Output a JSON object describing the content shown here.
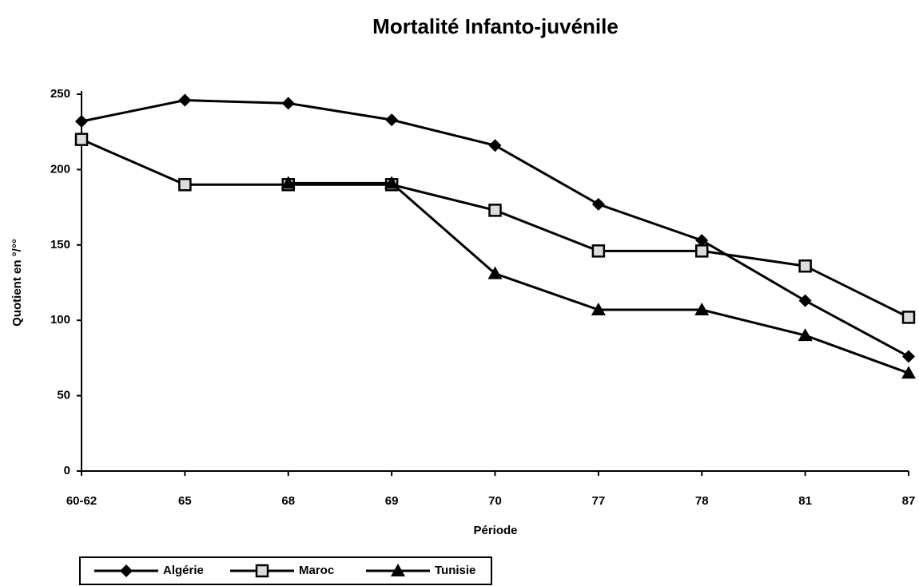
{
  "chart_data": {
    "type": "line",
    "title": "Mortalité Infanto-juvénile",
    "x_label": "Période",
    "y_label": "Quotient en °/°°",
    "categories": [
      "60-62",
      "65",
      "68",
      "69",
      "70",
      "77",
      "78",
      "81",
      "87"
    ],
    "series": [
      {
        "name": "Algérie",
        "color": "#000000",
        "marker": "diamond",
        "values": [
          232,
          246,
          244,
          233,
          216,
          177,
          153,
          113,
          76
        ]
      },
      {
        "name": "Maroc",
        "color": "#000000",
        "marker": "square",
        "values": [
          220,
          190,
          190,
          190,
          173,
          146,
          146,
          136,
          102
        ]
      },
      {
        "name": "Tunisie",
        "color": "#000000",
        "marker": "triangle",
        "values": [
          null,
          null,
          191,
          191,
          131,
          107,
          107,
          90,
          65
        ]
      }
    ],
    "ylim": [
      0,
      250
    ],
    "yticks": [
      0,
      50,
      100,
      150,
      200,
      250
    ],
    "grid": false,
    "legend": "bottom-left"
  }
}
